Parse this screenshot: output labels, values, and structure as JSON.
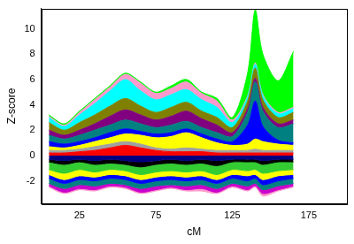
{
  "chart_data": {
    "type": "area",
    "x_label": "cM",
    "y_label": "Z-score",
    "x": [
      5,
      15,
      25,
      35,
      45,
      55,
      65,
      75,
      85,
      95,
      105,
      115,
      125,
      135,
      140,
      145,
      155,
      165
    ],
    "xlim": [
      0,
      200
    ],
    "xticks": [
      25,
      75,
      125,
      175
    ],
    "ylim": [
      -3.8,
      11.6
    ],
    "yticks": [
      -2,
      0,
      2,
      4,
      6,
      8,
      10
    ],
    "stacked": true,
    "grid": false,
    "series": [
      {
        "color": "#ff0000",
        "values": [
          0.2,
          0.2,
          0.3,
          0.4,
          0.6,
          0.8,
          0.6,
          0.4,
          0.3,
          0.3,
          0.3,
          0.2,
          0.2,
          0.2,
          0.2,
          0.2,
          0.2,
          0.2
        ]
      },
      {
        "color": "#a0a0a0",
        "values": [
          0.2,
          0.2,
          0.2,
          0.3,
          0.3,
          0.3,
          0.3,
          0.2,
          0.2,
          0.3,
          0.2,
          0.2,
          0.2,
          0.2,
          0.3,
          0.2,
          0.2,
          0.2
        ]
      },
      {
        "color": "#ffff00",
        "values": [
          0.3,
          0.2,
          0.3,
          0.4,
          0.5,
          0.6,
          0.7,
          0.8,
          1.0,
          1.2,
          0.9,
          0.6,
          0.4,
          0.5,
          0.8,
          0.7,
          0.5,
          0.4
        ]
      },
      {
        "color": "#0000ff",
        "values": [
          0.4,
          0.3,
          0.3,
          0.3,
          0.4,
          0.4,
          0.3,
          0.3,
          0.3,
          0.3,
          0.3,
          0.3,
          0.3,
          1.5,
          3.0,
          1.2,
          0.3,
          0.2
        ]
      },
      {
        "color": "#008080",
        "values": [
          0.5,
          0.4,
          0.5,
          0.6,
          0.6,
          0.7,
          0.6,
          0.5,
          0.6,
          0.6,
          0.5,
          0.5,
          0.4,
          1.0,
          1.5,
          1.2,
          1.0,
          1.5
        ]
      },
      {
        "color": "#800080",
        "values": [
          0.4,
          0.3,
          0.4,
          0.5,
          0.7,
          0.8,
          0.7,
          0.6,
          0.7,
          0.8,
          0.7,
          0.6,
          0.3,
          0.3,
          0.3,
          0.3,
          0.3,
          0.3
        ]
      },
      {
        "color": "#808000",
        "values": [
          0.6,
          0.4,
          0.6,
          0.7,
          0.8,
          0.9,
          0.7,
          0.6,
          0.7,
          0.7,
          0.6,
          0.6,
          0.4,
          0.6,
          0.8,
          0.6,
          0.5,
          0.6
        ]
      },
      {
        "color": "#00ffff",
        "values": [
          0.4,
          0.3,
          0.6,
          0.9,
          1.2,
          1.5,
          1.2,
          1.0,
          1.0,
          1.0,
          0.9,
          0.8,
          0.4,
          0.3,
          0.3,
          0.3,
          0.3,
          0.3
        ]
      },
      {
        "color": "#ff99cc",
        "values": [
          0.1,
          0.1,
          0.2,
          0.3,
          0.3,
          0.4,
          0.6,
          0.5,
          0.5,
          0.6,
          0.5,
          0.5,
          0.2,
          0.1,
          0.1,
          0.1,
          0.1,
          0.1
        ]
      },
      {
        "color": "#00ff00",
        "values": [
          0.1,
          0.1,
          0.1,
          0.1,
          0.1,
          0.1,
          0.1,
          0.1,
          0.2,
          0.2,
          0.1,
          0.2,
          0.2,
          1.8,
          4.2,
          3.2,
          2.5,
          4.4
        ]
      },
      {
        "color": "#000080",
        "values": [
          -0.3,
          -0.4,
          -0.3,
          -0.4,
          -0.3,
          -0.4,
          -0.5,
          -0.4,
          -0.3,
          -0.4,
          -0.3,
          -0.4,
          -0.3,
          -0.3,
          -0.3,
          -0.4,
          -0.3,
          -0.3
        ]
      },
      {
        "color": "#000000",
        "values": [
          -0.2,
          -0.3,
          -0.2,
          -0.3,
          -0.3,
          -0.3,
          -0.4,
          -0.3,
          -0.3,
          -0.3,
          -0.3,
          -0.4,
          -0.2,
          -0.2,
          -0.2,
          -0.3,
          -0.2,
          -0.2
        ]
      },
      {
        "color": "#33cc33",
        "values": [
          -0.6,
          -0.7,
          -0.6,
          -0.6,
          -0.5,
          -0.5,
          -0.6,
          -0.6,
          -0.6,
          -0.6,
          -0.6,
          -0.7,
          -0.6,
          -0.7,
          -0.6,
          -0.7,
          -0.7,
          -0.6
        ]
      },
      {
        "color": "#ffff00",
        "values": [
          -0.4,
          -0.5,
          -0.5,
          -0.4,
          -0.4,
          -0.4,
          -0.4,
          -0.4,
          -0.4,
          -0.4,
          -0.4,
          -0.4,
          -0.4,
          -0.4,
          -0.4,
          -0.5,
          -0.4,
          -0.4
        ]
      },
      {
        "color": "#0000ff",
        "values": [
          -0.3,
          -0.3,
          -0.3,
          -0.3,
          -0.3,
          -0.3,
          -0.3,
          -0.3,
          -0.3,
          -0.3,
          -0.3,
          -0.3,
          -0.3,
          -0.4,
          -0.3,
          -0.4,
          -0.4,
          -0.3
        ]
      },
      {
        "color": "#008080",
        "values": [
          -0.4,
          -0.4,
          -0.4,
          -0.4,
          -0.4,
          -0.4,
          -0.4,
          -0.4,
          -0.4,
          -0.4,
          -0.4,
          -0.4,
          -0.4,
          -0.4,
          -0.4,
          -0.4,
          -0.4,
          -0.4
        ]
      },
      {
        "color": "#cc00cc",
        "values": [
          -0.2,
          -0.3,
          -0.3,
          -0.3,
          -0.2,
          -0.2,
          -0.3,
          -0.3,
          -0.2,
          -0.3,
          -0.3,
          -0.3,
          -0.2,
          -0.3,
          -0.2,
          -0.3,
          -0.3,
          -0.2
        ]
      },
      {
        "color": "#ff99cc",
        "values": [
          -0.1,
          -0.1,
          -0.1,
          -0.1,
          -0.1,
          -0.1,
          -0.1,
          -0.1,
          -0.1,
          -0.1,
          -0.2,
          -0.1,
          -0.1,
          -0.1,
          -0.1,
          -0.2,
          -0.1,
          -0.1
        ]
      }
    ]
  }
}
